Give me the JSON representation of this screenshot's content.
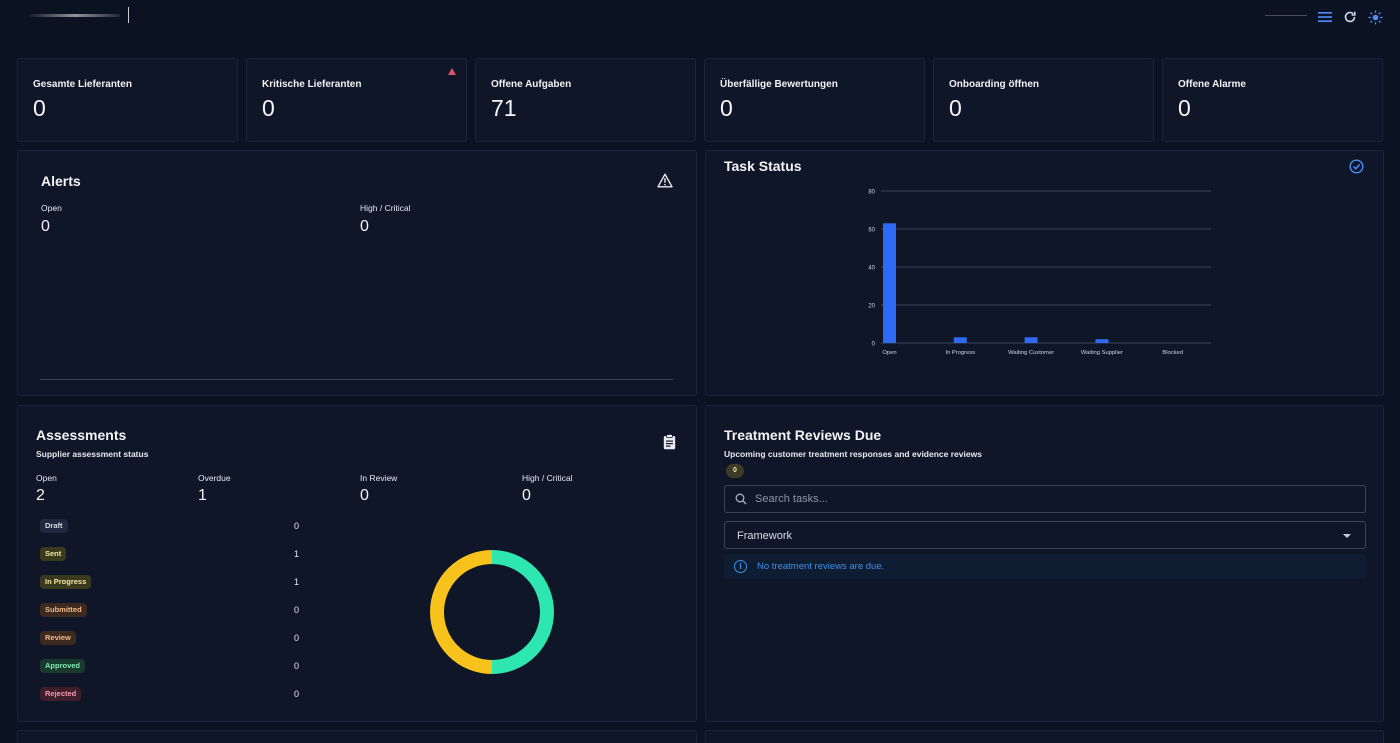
{
  "header": {
    "icons": [
      "menu-icon",
      "refresh-icon",
      "theme-toggle-icon"
    ]
  },
  "stats": [
    {
      "label": "Gesamte Lieferanten",
      "value": "0"
    },
    {
      "label": "Kritische Lieferanten",
      "value": "0",
      "warning": true
    },
    {
      "label": "Offene Aufgaben",
      "value": "71"
    },
    {
      "label": "Überfällige Bewertungen",
      "value": "0"
    },
    {
      "label": "Onboarding öffnen",
      "value": "0"
    },
    {
      "label": "Offene Alarme",
      "value": "0"
    }
  ],
  "alerts": {
    "title": "Alerts",
    "open_label": "Open",
    "open_value": "0",
    "high_label": "High / Critical",
    "high_value": "0"
  },
  "task_status": {
    "title": "Task Status"
  },
  "chart_data": {
    "type": "bar",
    "title": "Task Status",
    "categories": [
      "Open",
      "In Progress",
      "Waiting Customer",
      "Waiting Supplier",
      "Blocked"
    ],
    "values": [
      63,
      3,
      3,
      2,
      0
    ],
    "ylim": [
      0,
      80
    ],
    "yticks": [
      0,
      20,
      40,
      60,
      80
    ],
    "grid": true,
    "color": "#2f6bf2"
  },
  "assessments": {
    "title": "Assessments",
    "subtitle": "Supplier assessment status",
    "kpis": [
      {
        "label": "Open",
        "value": "2"
      },
      {
        "label": "Overdue",
        "value": "1"
      },
      {
        "label": "In Review",
        "value": "0"
      },
      {
        "label": "High / Critical",
        "value": "0"
      }
    ],
    "statuses": [
      {
        "label": "Draft",
        "count": "0",
        "bg": "#1f2a3e",
        "fg": "#d6dbe5"
      },
      {
        "label": "Sent",
        "count": "1",
        "bg": "#3a3a1f",
        "fg": "#f3e7a1"
      },
      {
        "label": "In Progress",
        "count": "1",
        "bg": "#3a3a1f",
        "fg": "#f3e7a1"
      },
      {
        "label": "Submitted",
        "count": "0",
        "bg": "#3d2a1e",
        "fg": "#f0b98c"
      },
      {
        "label": "Review",
        "count": "0",
        "bg": "#3d2a1e",
        "fg": "#f0b98c"
      },
      {
        "label": "Approved",
        "count": "0",
        "bg": "#173a2c",
        "fg": "#86e8b6"
      },
      {
        "label": "Rejected",
        "count": "0",
        "bg": "#3d1e2a",
        "fg": "#f59ab1"
      }
    ],
    "donut": [
      {
        "label": "Sent",
        "value": 1,
        "color": "#2ee6b0"
      },
      {
        "label": "In Progress",
        "value": 1,
        "color": "#f7c21c"
      }
    ]
  },
  "treatment": {
    "title": "Treatment Reviews Due",
    "subtitle": "Upcoming customer treatment responses and evidence reviews",
    "count": "0",
    "search_placeholder": "Search tasks...",
    "framework_label": "Framework",
    "empty_message": "No treatment reviews are due."
  }
}
